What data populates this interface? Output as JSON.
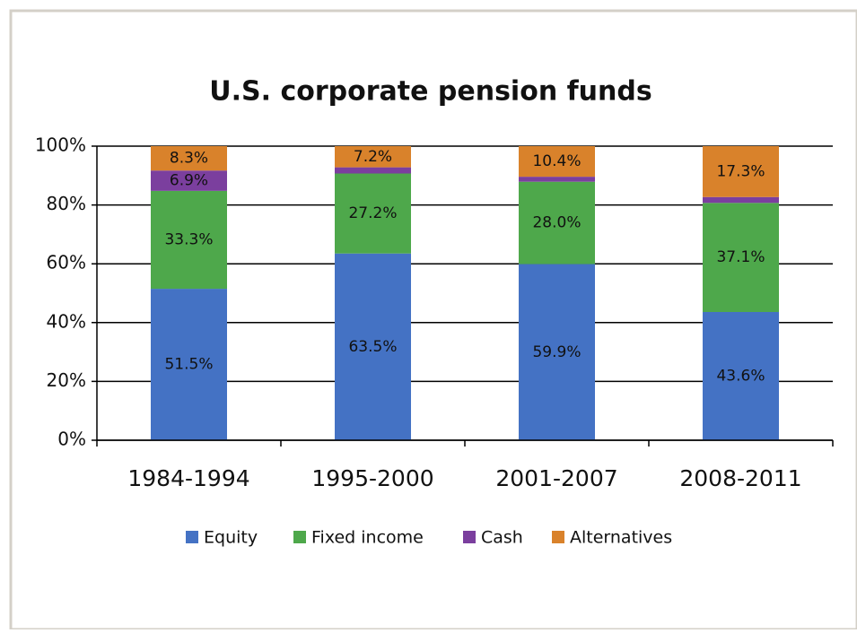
{
  "chart_data": {
    "type": "stacked-bar",
    "title": "U.S. corporate pension funds",
    "categories": [
      "1984-1994",
      "1995-2000",
      "2001-2007",
      "2008-2011"
    ],
    "series": [
      {
        "name": "Equity",
        "color": "#4472c4",
        "values": [
          51.5,
          63.5,
          59.9,
          43.6
        ],
        "value_labels": [
          "51.5%",
          "63.5%",
          "59.9%",
          "43.6%"
        ]
      },
      {
        "name": "Fixed income",
        "color": "#4ea84b",
        "values": [
          33.3,
          27.2,
          28.0,
          37.1
        ],
        "value_labels": [
          "33.3%",
          "27.2%",
          "28.0%",
          "37.1%"
        ]
      },
      {
        "name": "Cash",
        "color": "#7b3f9e",
        "values": [
          6.9,
          2.1,
          1.7,
          2.0
        ],
        "value_labels": [
          "6.9%",
          null,
          null,
          null
        ]
      },
      {
        "name": "Alternatives",
        "color": "#d9822b",
        "values": [
          8.3,
          7.2,
          10.4,
          17.3
        ],
        "value_labels": [
          "8.3%",
          "7.2%",
          "10.4%",
          "17.3%"
        ]
      }
    ],
    "ylim": [
      0,
      100
    ],
    "yticks": [
      {
        "value": 0,
        "label": "0%"
      },
      {
        "value": 20,
        "label": "20%"
      },
      {
        "value": 40,
        "label": "40%"
      },
      {
        "value": 60,
        "label": "60%"
      },
      {
        "value": 80,
        "label": "80%"
      },
      {
        "value": 100,
        "label": "100%"
      }
    ],
    "grid": true,
    "legend": "bottom"
  }
}
